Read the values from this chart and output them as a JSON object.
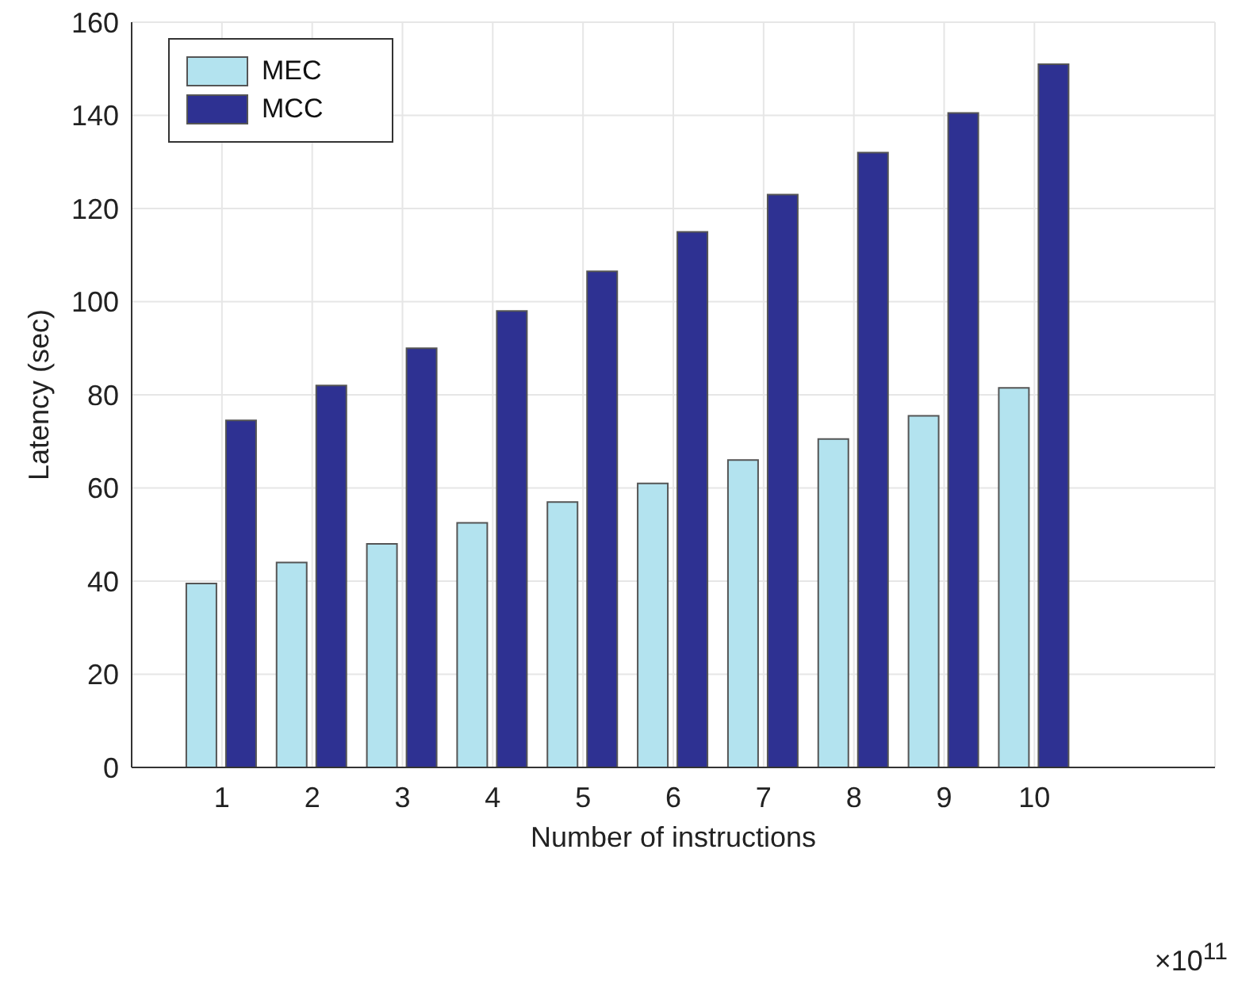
{
  "chart_data": {
    "type": "bar",
    "xlabel": "Number of instructions",
    "ylabel": "Latency (sec)",
    "x": [
      1,
      2,
      3,
      4,
      5,
      6,
      7,
      8,
      9,
      10
    ],
    "xlim": [
      0,
      12
    ],
    "xticks": [
      1,
      2,
      3,
      4,
      5,
      6,
      7,
      8,
      9,
      10
    ],
    "ylim": [
      0,
      160
    ],
    "yticks": [
      0,
      20,
      40,
      60,
      80,
      100,
      120,
      140,
      160
    ],
    "grid": true,
    "legend": "top left",
    "annotations": [
      "×10$^{11}$"
    ],
    "series": [
      {
        "name": "MEC",
        "color": "#b3e3ef",
        "values": [
          39.5,
          44,
          48,
          52.5,
          57,
          61,
          66,
          70.5,
          75.5,
          81.5
        ]
      },
      {
        "name": "MCC",
        "color": "#2e3192",
        "values": [
          74.5,
          82,
          90,
          98,
          106.5,
          115,
          123,
          132,
          140.5,
          151
        ]
      }
    ]
  }
}
